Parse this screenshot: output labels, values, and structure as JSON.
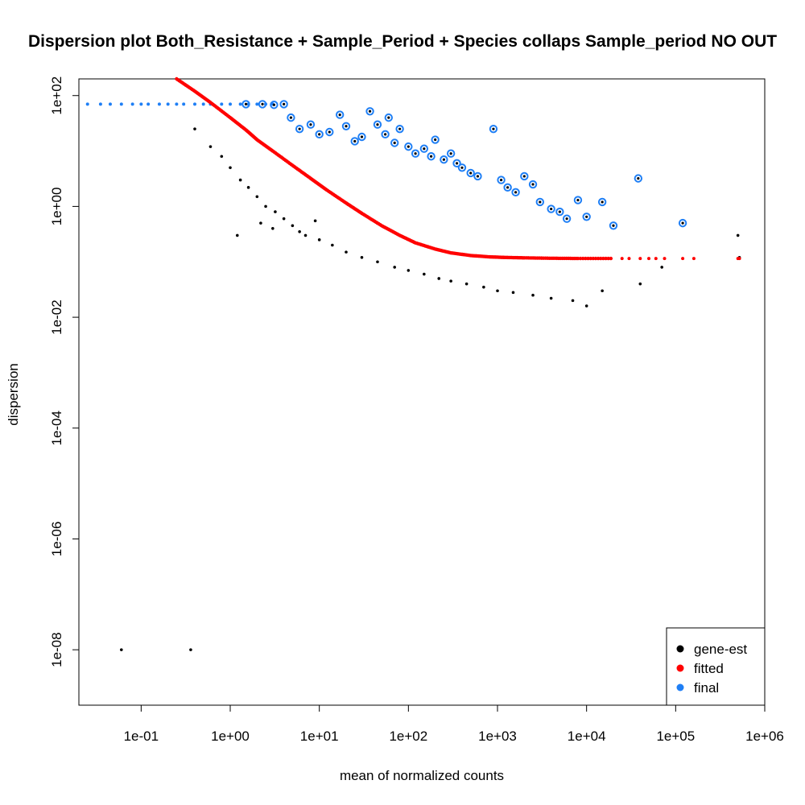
{
  "chart_data": {
    "type": "scatter",
    "title": "Dispersion plot  Both_Resistance + Sample_Period + Species collaps Sample_period NO OUT",
    "xlabel": "mean of normalized counts",
    "ylabel": "dispersion",
    "x_scale": "log10",
    "y_scale": "log10",
    "xlim": [
      0.02,
      1000000
    ],
    "ylim": [
      1e-09,
      200
    ],
    "x_ticks": [
      {
        "value": 0.1,
        "label": "1e-01"
      },
      {
        "value": 1,
        "label": "1e+00"
      },
      {
        "value": 10,
        "label": "1e+01"
      },
      {
        "value": 100,
        "label": "1e+02"
      },
      {
        "value": 1000,
        "label": "1e+03"
      },
      {
        "value": 10000,
        "label": "1e+04"
      },
      {
        "value": 100000,
        "label": "1e+05"
      },
      {
        "value": 1000000,
        "label": "1e+06"
      }
    ],
    "y_ticks": [
      {
        "value": 1e-08,
        "label": "1e-08"
      },
      {
        "value": 1e-06,
        "label": "1e-06"
      },
      {
        "value": 0.0001,
        "label": "1e-04"
      },
      {
        "value": 0.01,
        "label": "1e-02"
      },
      {
        "value": 1,
        "label": "1e+00"
      },
      {
        "value": 100,
        "label": "1e+02"
      }
    ],
    "grid": false,
    "legend": {
      "position": "bottom-right",
      "entries": [
        {
          "label": "gene-est",
          "color": "#000000"
        },
        {
          "label": "fitted",
          "color": "#ff0000"
        },
        {
          "label": "final",
          "color": "#1f7ff5"
        }
      ]
    },
    "series": [
      {
        "name": "gene-est",
        "color": "#000000",
        "points": [
          [
            0.06,
            1e-08
          ],
          [
            0.36,
            1e-08
          ],
          [
            0.4,
            25
          ],
          [
            0.6,
            12
          ],
          [
            0.8,
            8
          ],
          [
            1.0,
            5
          ],
          [
            1.3,
            3
          ],
          [
            1.6,
            2.2
          ],
          [
            2.0,
            1.5
          ],
          [
            2.5,
            1.0
          ],
          [
            3.2,
            0.8
          ],
          [
            4.0,
            0.6
          ],
          [
            5.0,
            0.45
          ],
          [
            7.0,
            0.3
          ],
          [
            10,
            0.25
          ],
          [
            1.2,
            0.3
          ],
          [
            2.2,
            0.5
          ],
          [
            3.0,
            0.4
          ],
          [
            6.0,
            0.35
          ],
          [
            9.0,
            0.55
          ],
          [
            14,
            0.2
          ],
          [
            20,
            0.15
          ],
          [
            30,
            0.12
          ],
          [
            45,
            0.1
          ],
          [
            70,
            0.08
          ],
          [
            100,
            0.07
          ],
          [
            150,
            0.06
          ],
          [
            220,
            0.05
          ],
          [
            300,
            0.045
          ],
          [
            450,
            0.04
          ],
          [
            700,
            0.035
          ],
          [
            1000,
            0.03
          ],
          [
            1500,
            0.028
          ],
          [
            2500,
            0.025
          ],
          [
            4000,
            0.022
          ],
          [
            7000,
            0.02
          ],
          [
            10000,
            0.016
          ],
          [
            15000,
            0.03
          ],
          [
            40000,
            0.04
          ],
          [
            70000,
            0.08
          ],
          [
            500000,
            0.3
          ],
          [
            520000,
            0.12
          ]
        ]
      },
      {
        "name": "fitted",
        "color": "#ff0000",
        "curve": [
          [
            0.25,
            200
          ],
          [
            0.4,
            120
          ],
          [
            0.6,
            75
          ],
          [
            1.0,
            40
          ],
          [
            1.5,
            24
          ],
          [
            2.0,
            16
          ],
          [
            3.0,
            10
          ],
          [
            5.0,
            5.5
          ],
          [
            8.0,
            3.2
          ],
          [
            12,
            2.0
          ],
          [
            20,
            1.15
          ],
          [
            30,
            0.75
          ],
          [
            50,
            0.45
          ],
          [
            80,
            0.3
          ],
          [
            120,
            0.22
          ],
          [
            200,
            0.17
          ],
          [
            300,
            0.145
          ],
          [
            500,
            0.13
          ],
          [
            800,
            0.123
          ],
          [
            1200,
            0.12
          ],
          [
            2000,
            0.118
          ],
          [
            4000,
            0.116
          ],
          [
            8000,
            0.115
          ],
          [
            20000,
            0.115
          ]
        ],
        "extra_points": [
          [
            25000,
            0.115
          ],
          [
            30000,
            0.115
          ],
          [
            40000,
            0.115
          ],
          [
            50000,
            0.115
          ],
          [
            60000,
            0.115
          ],
          [
            75000,
            0.115
          ],
          [
            120000,
            0.115
          ],
          [
            160000,
            0.115
          ],
          [
            500000,
            0.115
          ],
          [
            520000,
            0.115
          ]
        ]
      },
      {
        "name": "final",
        "color": "#1f7ff5",
        "points": [
          [
            0.025,
            70
          ],
          [
            0.035,
            70
          ],
          [
            0.045,
            70
          ],
          [
            0.06,
            70
          ],
          [
            0.08,
            70
          ],
          [
            0.1,
            70
          ],
          [
            0.12,
            70
          ],
          [
            0.16,
            70
          ],
          [
            0.2,
            70
          ],
          [
            0.25,
            70
          ],
          [
            0.3,
            70
          ],
          [
            0.4,
            70
          ],
          [
            0.5,
            70
          ],
          [
            0.6,
            70
          ],
          [
            0.8,
            70
          ],
          [
            1.0,
            70
          ],
          [
            1.3,
            70
          ],
          [
            1.6,
            70
          ],
          [
            2.0,
            70
          ],
          [
            2.5,
            70
          ],
          [
            3.0,
            70
          ]
        ],
        "outliers": [
          [
            1.5,
            70
          ],
          [
            2.3,
            70
          ],
          [
            3.1,
            68
          ],
          [
            4.0,
            70
          ],
          [
            4.8,
            40
          ],
          [
            6.0,
            25
          ],
          [
            8.0,
            30
          ],
          [
            10,
            20
          ],
          [
            13,
            22
          ],
          [
            17,
            45
          ],
          [
            20,
            28
          ],
          [
            25,
            15
          ],
          [
            30,
            18
          ],
          [
            37,
            52
          ],
          [
            45,
            30
          ],
          [
            55,
            20
          ],
          [
            60,
            40
          ],
          [
            70,
            14
          ],
          [
            80,
            25
          ],
          [
            100,
            12
          ],
          [
            120,
            9
          ],
          [
            150,
            11
          ],
          [
            180,
            8
          ],
          [
            200,
            16
          ],
          [
            250,
            7
          ],
          [
            300,
            9
          ],
          [
            350,
            6
          ],
          [
            400,
            5
          ],
          [
            500,
            4
          ],
          [
            600,
            3.5
          ],
          [
            900,
            25
          ],
          [
            1100,
            3
          ],
          [
            1300,
            2.2
          ],
          [
            1600,
            1.8
          ],
          [
            2000,
            3.5
          ],
          [
            2500,
            2.5
          ],
          [
            3000,
            1.2
          ],
          [
            4000,
            0.9
          ],
          [
            5000,
            0.8
          ],
          [
            6000,
            0.6
          ],
          [
            8000,
            1.3
          ],
          [
            10000,
            0.65
          ],
          [
            15000,
            1.2
          ],
          [
            20000,
            0.45
          ],
          [
            38000,
            3.2
          ],
          [
            120000,
            0.5
          ]
        ]
      }
    ]
  }
}
